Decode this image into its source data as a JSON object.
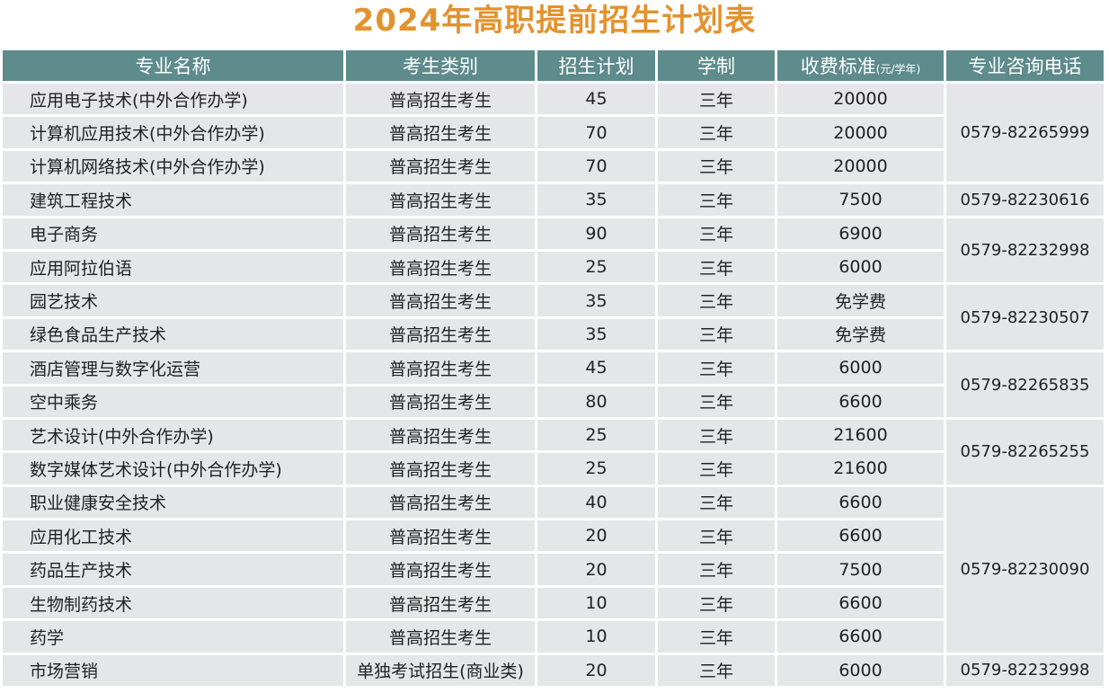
{
  "title": "2024年高职提前招生计划表",
  "headers": {
    "major": "专业名称",
    "category": "考生类别",
    "plan": "招生计划",
    "duration": "学制",
    "fee": "收费标准",
    "fee_unit": "(元/学年)",
    "phone": "专业咨询电话"
  },
  "rows": [
    {
      "major": "应用电子技术(中外合作办学)",
      "category": "普高招生考生",
      "plan": "45",
      "duration": "三年",
      "fee": "20000"
    },
    {
      "major": "计算机应用技术(中外合作办学)",
      "category": "普高招生考生",
      "plan": "70",
      "duration": "三年",
      "fee": "20000"
    },
    {
      "major": "计算机网络技术(中外合作办学)",
      "category": "普高招生考生",
      "plan": "70",
      "duration": "三年",
      "fee": "20000"
    },
    {
      "major": "建筑工程技术",
      "category": "普高招生考生",
      "plan": "35",
      "duration": "三年",
      "fee": "7500"
    },
    {
      "major": "电子商务",
      "category": "普高招生考生",
      "plan": "90",
      "duration": "三年",
      "fee": "6900"
    },
    {
      "major": "应用阿拉伯语",
      "category": "普高招生考生",
      "plan": "25",
      "duration": "三年",
      "fee": "6000"
    },
    {
      "major": "园艺技术",
      "category": "普高招生考生",
      "plan": "35",
      "duration": "三年",
      "fee": "免学费"
    },
    {
      "major": "绿色食品生产技术",
      "category": "普高招生考生",
      "plan": "35",
      "duration": "三年",
      "fee": "免学费"
    },
    {
      "major": "酒店管理与数字化运营",
      "category": "普高招生考生",
      "plan": "45",
      "duration": "三年",
      "fee": "6000"
    },
    {
      "major": "空中乘务",
      "category": "普高招生考生",
      "plan": "80",
      "duration": "三年",
      "fee": "6600"
    },
    {
      "major": "艺术设计(中外合作办学)",
      "category": "普高招生考生",
      "plan": "25",
      "duration": "三年",
      "fee": "21600"
    },
    {
      "major": "数字媒体艺术设计(中外合作办学)",
      "category": "普高招生考生",
      "plan": "25",
      "duration": "三年",
      "fee": "21600"
    },
    {
      "major": "职业健康安全技术",
      "category": "普高招生考生",
      "plan": "40",
      "duration": "三年",
      "fee": "6600"
    },
    {
      "major": "应用化工技术",
      "category": "普高招生考生",
      "plan": "20",
      "duration": "三年",
      "fee": "6600"
    },
    {
      "major": "药品生产技术",
      "category": "普高招生考生",
      "plan": "20",
      "duration": "三年",
      "fee": "7500"
    },
    {
      "major": "生物制药技术",
      "category": "普高招生考生",
      "plan": "10",
      "duration": "三年",
      "fee": "6600"
    },
    {
      "major": "药学",
      "category": "普高招生考生",
      "plan": "10",
      "duration": "三年",
      "fee": "6600"
    },
    {
      "major": "市场营销",
      "category": "单独考试招生(商业类)",
      "plan": "20",
      "duration": "三年",
      "fee": "6000"
    }
  ],
  "phones": [
    {
      "number": "0579-82265999",
      "start": 0,
      "span": 3
    },
    {
      "number": "0579-82230616",
      "start": 3,
      "span": 1
    },
    {
      "number": "0579-82232998",
      "start": 4,
      "span": 2
    },
    {
      "number": "0579-82230507",
      "start": 6,
      "span": 2
    },
    {
      "number": "0579-82265835",
      "start": 8,
      "span": 2
    },
    {
      "number": "0579-82265255",
      "start": 10,
      "span": 2
    },
    {
      "number": "0579-82230090",
      "start": 12,
      "span": 5
    },
    {
      "number": "0579-82232998",
      "start": 17,
      "span": 1
    }
  ]
}
